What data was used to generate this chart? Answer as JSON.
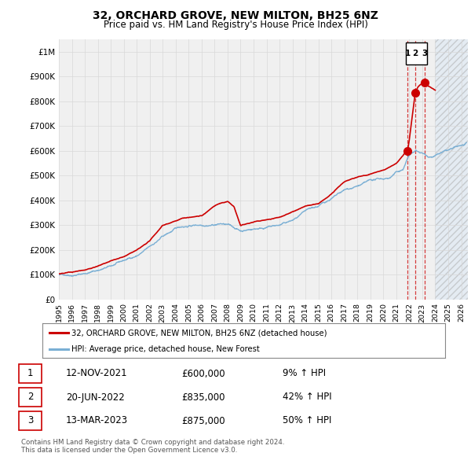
{
  "title1": "32, ORCHARD GROVE, NEW MILTON, BH25 6NZ",
  "title2": "Price paid vs. HM Land Registry's House Price Index (HPI)",
  "x_start": 1995.0,
  "x_end": 2026.5,
  "y_min": 0,
  "y_max": 1050000,
  "yticks": [
    0,
    100000,
    200000,
    300000,
    400000,
    500000,
    600000,
    700000,
    800000,
    900000,
    1000000
  ],
  "ytick_labels": [
    "£0",
    "£100K",
    "£200K",
    "£300K",
    "£400K",
    "£500K",
    "£600K",
    "£700K",
    "£800K",
    "£900K",
    "£1M"
  ],
  "xticks": [
    1995,
    1996,
    1997,
    1998,
    1999,
    2000,
    2001,
    2002,
    2003,
    2004,
    2005,
    2006,
    2007,
    2008,
    2009,
    2010,
    2011,
    2012,
    2013,
    2014,
    2015,
    2016,
    2017,
    2018,
    2019,
    2020,
    2021,
    2022,
    2023,
    2024,
    2025,
    2026
  ],
  "sale1_x": 2021.87,
  "sale1_y": 600000,
  "sale2_x": 2022.47,
  "sale2_y": 835000,
  "sale3_x": 2023.2,
  "sale3_y": 875000,
  "hatch_start": 2024.0,
  "hatch_end": 2026.5,
  "legend1_label": "32, ORCHARD GROVE, NEW MILTON, BH25 6NZ (detached house)",
  "legend2_label": "HPI: Average price, detached house, New Forest",
  "red_color": "#cc0000",
  "blue_color": "#7aafd4",
  "table_rows": [
    [
      "1",
      "12-NOV-2021",
      "£600,000",
      "9% ↑ HPI"
    ],
    [
      "2",
      "20-JUN-2022",
      "£835,000",
      "42% ↑ HPI"
    ],
    [
      "3",
      "13-MAR-2023",
      "£875,000",
      "50% ↑ HPI"
    ]
  ],
  "footer": "Contains HM Land Registry data © Crown copyright and database right 2024.\nThis data is licensed under the Open Government Licence v3.0.",
  "bg_color": "#ffffff",
  "plot_bg_color": "#f0f0f0",
  "grid_color": "#d8d8d8"
}
